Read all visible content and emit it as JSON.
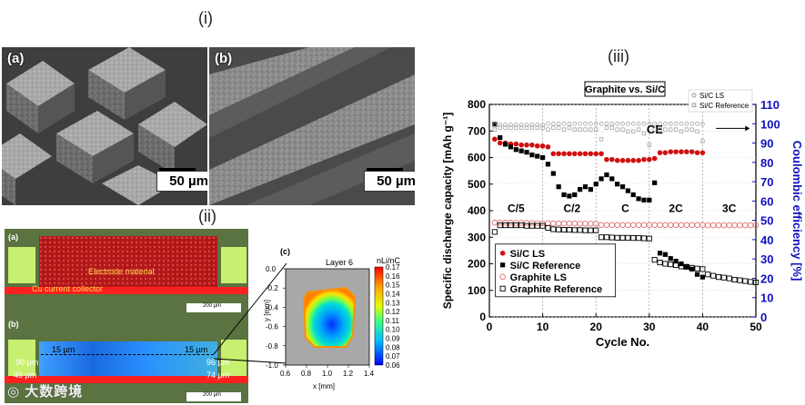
{
  "labels": {
    "section_i": "(i)",
    "section_ii": "(ii)",
    "section_iii": "(iii)"
  },
  "sem": {
    "a_label": "(a)",
    "b_label": "(b)",
    "a_scale": "50 µm",
    "b_scale": "50 µm"
  },
  "optical": {
    "a_label": "(a)",
    "b_label": "(b)",
    "c_label": "(c)",
    "electrode_text": "Electrode material",
    "collector_text": "Cu current collector",
    "scale_text_a": "200 µm",
    "scale_text_b": "200 µm",
    "dims": {
      "top_left": "15 µm",
      "top_right": "15 µm",
      "left_mid": "90 µm",
      "right_mid": "96 µm",
      "bottom_left": "46 µm",
      "bottom_right": "74 µm"
    }
  },
  "heatmap": {
    "title": "Layer 6",
    "unit": "nLi/nC",
    "xlabel": "x [mm]",
    "ylabel": "y [mm]",
    "x_ticks": [
      "0.6",
      "0.8",
      "1.0",
      "1.2",
      "1.4"
    ],
    "y_ticks": [
      "0.0",
      "-0.2",
      "-0.4",
      "-0.6",
      "-0.8",
      "-1.0"
    ],
    "colorbar_ticks": [
      "0.17",
      "0.16",
      "0.15",
      "0.14",
      "0.13",
      "0.12",
      "0.11",
      "0.10",
      "0.09",
      "0.08",
      "0.07",
      "0.06"
    ]
  },
  "watermark": "大数跨境",
  "chart_data": {
    "type": "scatter",
    "title": "Graphite vs. Si/C",
    "xlabel": "Cycle No.",
    "ylabel": "Specific discharge capacity [mAh g⁻¹]",
    "y2label": "Coulombic efficiency [%]",
    "xlim": [
      0,
      50
    ],
    "ylim": [
      0,
      800
    ],
    "y2lim": [
      0,
      110
    ],
    "x_ticks": [
      "0",
      "10",
      "20",
      "30",
      "40",
      "50"
    ],
    "y_ticks": [
      "0",
      "100",
      "200",
      "300",
      "400",
      "500",
      "600",
      "700",
      "800"
    ],
    "y2_ticks": [
      "0",
      "10",
      "20",
      "30",
      "40",
      "50",
      "60",
      "70",
      "80",
      "90",
      "100",
      "110"
    ],
    "rate_labels": [
      {
        "text": "C/5",
        "x": 5,
        "y": 395
      },
      {
        "text": "C/2",
        "x": 15.5,
        "y": 395
      },
      {
        "text": "C",
        "x": 25.5,
        "y": 395
      },
      {
        "text": "2C",
        "x": 35,
        "y": 395
      },
      {
        "text": "3C",
        "x": 45,
        "y": 395
      }
    ],
    "ce_label": "CE",
    "legend_ce": [
      "Si/C LS",
      "Si/C Reference"
    ],
    "legend": [
      "Si/C LS",
      "Si/C Reference",
      "Graphite LS",
      "Graphite Reference"
    ],
    "series": [
      {
        "name": "Si/C LS",
        "marker": "filled-circle",
        "color": "#d01010",
        "x": [
          1,
          2,
          3,
          4,
          5,
          6,
          7,
          8,
          9,
          10,
          11,
          12,
          13,
          14,
          15,
          16,
          17,
          18,
          19,
          20,
          21,
          22,
          23,
          24,
          25,
          26,
          27,
          28,
          29,
          30,
          31,
          32,
          33,
          34,
          35,
          36,
          37,
          38,
          39,
          40
        ],
        "y": [
          92,
          90,
          90,
          89.5,
          89.5,
          89,
          89,
          89,
          88.5,
          88.5,
          88,
          84.5,
          84.5,
          84.5,
          84.5,
          84.5,
          84.5,
          84.5,
          84.5,
          84.5,
          84.5,
          81.5,
          81.5,
          81,
          81,
          81,
          81,
          81,
          81.5,
          81.5,
          82,
          85,
          85,
          85.5,
          85.5,
          85.5,
          85.5,
          85.5,
          85,
          85
        ],
        "axis": "y2"
      },
      {
        "name": "Si/C Reference",
        "marker": "filled-square",
        "color": "#000000",
        "x": [
          1,
          2,
          3,
          4,
          5,
          6,
          7,
          8,
          9,
          10,
          11,
          12,
          13,
          14,
          15,
          16,
          17,
          18,
          19,
          20,
          21,
          22,
          23,
          24,
          25,
          26,
          27,
          28,
          29,
          30,
          31,
          32,
          33,
          34,
          35,
          36,
          37,
          38,
          39,
          40
        ],
        "y": [
          725,
          675,
          650,
          640,
          630,
          625,
          620,
          610,
          605,
          600,
          575,
          540,
          490,
          460,
          455,
          460,
          480,
          490,
          480,
          500,
          520,
          535,
          520,
          500,
          490,
          475,
          460,
          445,
          440,
          440,
          505,
          240,
          235,
          220,
          210,
          200,
          190,
          180,
          160,
          150
        ],
        "axis": "y"
      },
      {
        "name": "Graphite LS",
        "marker": "open-circle",
        "color": "#e07070",
        "x": [
          1,
          2,
          3,
          4,
          5,
          6,
          7,
          8,
          9,
          10,
          11,
          12,
          13,
          14,
          15,
          16,
          17,
          18,
          19,
          20,
          21,
          22,
          23,
          24,
          25,
          26,
          27,
          28,
          29,
          30,
          31,
          32,
          33,
          34,
          35,
          36,
          37,
          38,
          39,
          40,
          41,
          42,
          43,
          44,
          45,
          46,
          47,
          48,
          49,
          50
        ],
        "y": [
          355,
          355,
          355,
          355,
          354,
          354,
          354,
          354,
          353,
          353,
          353,
          352,
          352,
          352,
          352,
          352,
          351,
          351,
          351,
          351,
          346,
          346,
          346,
          346,
          346,
          346,
          346,
          346,
          346,
          346,
          346,
          346,
          346,
          346,
          346,
          346,
          346,
          346,
          346,
          346,
          345,
          345,
          345,
          345,
          345,
          345,
          345,
          345,
          345,
          345
        ],
        "axis": "y"
      },
      {
        "name": "Graphite Reference",
        "marker": "open-square",
        "color": "#000000",
        "x": [
          1,
          2,
          3,
          4,
          5,
          6,
          7,
          8,
          9,
          10,
          11,
          12,
          13,
          14,
          15,
          16,
          17,
          18,
          19,
          20,
          21,
          22,
          23,
          24,
          25,
          26,
          27,
          28,
          29,
          30,
          31,
          32,
          33,
          34,
          35,
          36,
          37,
          38,
          39,
          40,
          41,
          42,
          43,
          44,
          45,
          46,
          47,
          48,
          49,
          50
        ],
        "y": [
          320,
          345,
          345,
          345,
          345,
          345,
          343,
          343,
          343,
          343,
          335,
          330,
          329,
          328,
          328,
          327,
          327,
          326,
          326,
          326,
          300,
          300,
          299,
          298,
          298,
          298,
          297,
          297,
          296,
          295,
          215,
          205,
          200,
          198,
          195,
          190,
          188,
          185,
          182,
          180,
          160,
          155,
          150,
          148,
          145,
          140,
          138,
          135,
          132,
          130
        ],
        "axis": "y"
      },
      {
        "name": "Si/C LS CE",
        "marker": "open-circle-small",
        "color": "#999999",
        "x": [
          1,
          2,
          3,
          4,
          5,
          6,
          7,
          8,
          9,
          10,
          11,
          12,
          13,
          14,
          15,
          16,
          17,
          18,
          19,
          20,
          21,
          22,
          23,
          24,
          25,
          26,
          27,
          28,
          29,
          30,
          31,
          32,
          33,
          34,
          35,
          36,
          37,
          38,
          39,
          40
        ],
        "y": [
          99.5,
          99.5,
          99.5,
          99.5,
          99.5,
          99.5,
          99.5,
          99.5,
          99.5,
          99.5,
          100,
          100,
          100,
          100,
          100,
          100,
          100,
          100,
          100,
          100,
          100,
          100,
          100,
          100,
          100,
          100,
          100,
          100,
          100,
          100,
          100,
          100,
          100,
          100,
          100,
          100,
          100,
          100,
          100,
          100
        ],
        "axis": "y2"
      },
      {
        "name": "Si/C Reference CE",
        "marker": "open-square-small",
        "color": "#999999",
        "x": [
          1,
          2,
          3,
          4,
          5,
          6,
          7,
          8,
          9,
          10,
          11,
          12,
          13,
          14,
          15,
          16,
          17,
          18,
          19,
          20,
          21,
          22,
          23,
          24,
          25,
          26,
          27,
          28,
          29,
          30,
          31,
          32,
          33,
          34,
          35,
          36,
          37,
          38,
          39,
          40
        ],
        "y": [
          97,
          98,
          98,
          98,
          98,
          98,
          98,
          98,
          98,
          98,
          97,
          98,
          98,
          97,
          98,
          97,
          97,
          97,
          97,
          97,
          92,
          98,
          98,
          97,
          97,
          96,
          96,
          97,
          95,
          89,
          97,
          97,
          97,
          97,
          97,
          96,
          97,
          97,
          96,
          91
        ],
        "axis": "y2"
      }
    ]
  }
}
